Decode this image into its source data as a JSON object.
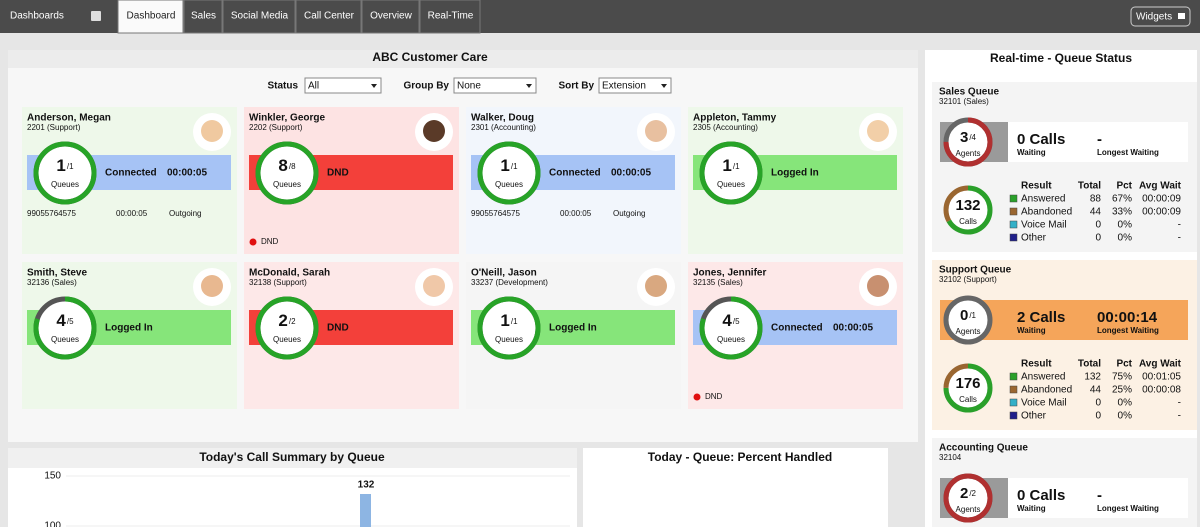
{
  "nav": {
    "menu": "Dashboards",
    "tabs": [
      "Dashboard",
      "Sales",
      "Social Media",
      "Call Center",
      "Overview",
      "Real-Time"
    ],
    "active_tab": 0,
    "button": "Widgets"
  },
  "agents_panel": {
    "title": "ABC Customer Care",
    "filters": [
      {
        "label": "Status",
        "value": "All"
      },
      {
        "label": "Group By",
        "value": "None"
      },
      {
        "label": "Sort By",
        "value": "Extension"
      }
    ],
    "queues_label": "Queues",
    "agents": [
      {
        "name": "Anderson, Megan",
        "extension": "2201 (Support)",
        "queues_active": 1,
        "queues_total": 1,
        "state": "Connected",
        "duration": "00:00:05",
        "number": "99055764575",
        "call_time": "00:00:05",
        "direction": "Outgoing",
        "card_color": "#eef8ea",
        "state_color": "#a6c3f5"
      },
      {
        "name": "Winkler, George",
        "extension": "2202 (Support)",
        "queues_active": 8,
        "queues_total": 8,
        "state": "DND",
        "status": "DND",
        "status_color": "#e01010",
        "card_color": "#fde3e3",
        "state_color": "#f3403a"
      },
      {
        "name": "Walker, Doug",
        "extension": "2301 (Accounting)",
        "queues_active": 1,
        "queues_total": 1,
        "state": "Connected",
        "duration": "00:00:05",
        "number": "99055764575",
        "call_time": "00:00:05",
        "direction": "Outgoing",
        "card_color": "#f2f6fc",
        "state_color": "#a6c3f5"
      },
      {
        "name": "Appleton, Tammy",
        "extension": "2305 (Accounting)",
        "queues_active": 1,
        "queues_total": 1,
        "state": "Logged In",
        "card_color": "#eef8ea",
        "state_color": "#86e57a"
      },
      {
        "name": "Smith, Steve",
        "extension": "32136 (Sales)",
        "queues_active": 4,
        "queues_total": 5,
        "state": "Logged In",
        "card_color": "#eef8ea",
        "state_color": "#86e57a"
      },
      {
        "name": "McDonald, Sarah",
        "extension": "32138 (Support)",
        "queues_active": 2,
        "queues_total": 2,
        "state": "DND",
        "card_color": "#fde8e8",
        "state_color": "#f3403a"
      },
      {
        "name": "O'Neill, Jason",
        "extension": "33237 (Development)",
        "queues_active": 1,
        "queues_total": 1,
        "state": "Logged In",
        "card_color": "#f5f5f5",
        "state_color": "#86e57a"
      },
      {
        "name": "Jones, Jennifer",
        "extension": "32135 (Sales)",
        "queues_active": 4,
        "queues_total": 5,
        "state": "Connected",
        "duration": "00:00:05",
        "status": "DND",
        "status_color": "#e01010",
        "card_color": "#fde8e8",
        "state_color": "#a6c3f5"
      }
    ]
  },
  "queues_panel": {
    "title": "Real-time - Queue Status",
    "columns": [
      "Result",
      "Total",
      "Pct",
      "Avg Wait"
    ],
    "agents_label": "Agents",
    "calls_label": "Calls",
    "waiting_label": "Waiting",
    "longest_label": "Longest Waiting",
    "queues": [
      {
        "name": "Sales Queue",
        "extension": "32101 (Sales)",
        "agents_available": 3,
        "agents_total": 4,
        "waiting": "0 Calls",
        "longest": "-",
        "box_color": "#f4f4f4",
        "band_color": "#ffffff",
        "calls": 132,
        "results": [
          {
            "name": "Answered",
            "color": "#2aa02a",
            "total": 88,
            "pct": "67%",
            "avg_wait": "00:00:09"
          },
          {
            "name": "Abandoned",
            "color": "#9a6630",
            "total": 44,
            "pct": "33%",
            "avg_wait": "00:00:09"
          },
          {
            "name": "Voice Mail",
            "color": "#33b0c8",
            "total": 0,
            "pct": "0%",
            "avg_wait": "-"
          },
          {
            "name": "Other",
            "color": "#1f1f8a",
            "total": 0,
            "pct": "0%",
            "avg_wait": "-"
          }
        ]
      },
      {
        "name": "Support Queue",
        "extension": "32102 (Support)",
        "agents_available": 0,
        "agents_total": 1,
        "waiting": "2 Calls",
        "longest": "00:00:14",
        "box_color": "#fcf1e4",
        "band_color": "#f5a55a",
        "calls": 176,
        "results": [
          {
            "name": "Answered",
            "color": "#2aa02a",
            "total": 132,
            "pct": "75%",
            "avg_wait": "00:01:05"
          },
          {
            "name": "Abandoned",
            "color": "#9a6630",
            "total": 44,
            "pct": "25%",
            "avg_wait": "00:00:08"
          },
          {
            "name": "Voice Mail",
            "color": "#33b0c8",
            "total": 0,
            "pct": "0%",
            "avg_wait": "-"
          },
          {
            "name": "Other",
            "color": "#1f1f8a",
            "total": 0,
            "pct": "0%",
            "avg_wait": "-"
          }
        ]
      },
      {
        "name": "Accounting Queue",
        "extension": "32104",
        "agents_available": 2,
        "agents_total": 2,
        "waiting": "0 Calls",
        "longest": "-",
        "box_color": "#f4f4f4",
        "band_color": "#ffffff"
      }
    ]
  },
  "summary": {
    "title": "Today's Call Summary by Queue",
    "yticks": [
      150,
      100
    ],
    "bar_value": 132,
    "bar_color": "#8db5e3"
  },
  "percent_handled": {
    "title": "Today - Queue: Percent Handled"
  }
}
